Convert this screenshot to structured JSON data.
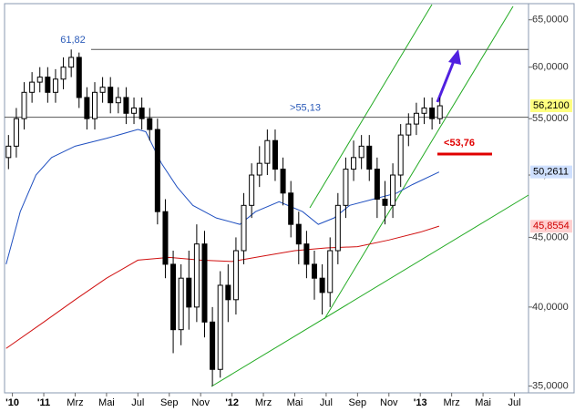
{
  "chart_data": {
    "type": "candlestick",
    "log_scale": true,
    "xlim": [
      -2.5,
      30.9
    ],
    "ylim": [
      34.6,
      66.8
    ],
    "xticks": [
      {
        "value": -2,
        "label": "'10"
      },
      {
        "value": 0,
        "label": "'11"
      },
      {
        "value": 2,
        "label": "Mrz"
      },
      {
        "value": 4,
        "label": "Mai"
      },
      {
        "value": 6,
        "label": "Jul"
      },
      {
        "value": 8,
        "label": "Sep"
      },
      {
        "value": 10,
        "label": "Nov"
      },
      {
        "value": 12,
        "label": "'12"
      },
      {
        "value": 14,
        "label": "Mrz"
      },
      {
        "value": 16,
        "label": "Mai"
      },
      {
        "value": 18,
        "label": "Jul"
      },
      {
        "value": 20,
        "label": "Sep"
      },
      {
        "value": 22,
        "label": "Nov"
      },
      {
        "value": 24,
        "label": "'13"
      },
      {
        "value": 26,
        "label": "Mrz"
      },
      {
        "value": 28,
        "label": "Mai"
      },
      {
        "value": 30,
        "label": "Jul"
      }
    ],
    "yticks": [
      {
        "value": 35,
        "label": "35,0000"
      },
      {
        "value": 40,
        "label": "40,0000"
      },
      {
        "value": 45,
        "label": "45,0000"
      },
      {
        "value": 50,
        "label": "50,0000"
      },
      {
        "value": 55,
        "label": "55,0000"
      },
      {
        "value": 60,
        "label": "60,0000"
      },
      {
        "value": 65,
        "label": "65,0000"
      }
    ],
    "candles": {
      "x": [
        -2.25,
        -1.75,
        -1.25,
        -0.75,
        -0.25,
        0.25,
        0.75,
        1.25,
        1.75,
        2.25,
        2.75,
        3.25,
        3.75,
        4.25,
        4.75,
        5.25,
        5.75,
        6.25,
        6.75,
        7.25,
        7.75,
        8.25,
        8.75,
        9.25,
        9.75,
        10.25,
        10.75,
        11.25,
        11.75,
        12.25,
        12.75,
        13.25,
        13.75,
        14.25,
        14.75,
        15.25,
        15.75,
        16.25,
        16.75,
        17.25,
        17.75,
        18.25,
        18.75,
        19.25,
        19.75,
        20.25,
        20.75,
        21.25,
        21.75,
        22.25,
        22.75,
        23.25,
        23.75,
        24.25,
        24.75,
        25.25
      ],
      "open": [
        51.5,
        52.5,
        55,
        57.5,
        58.5,
        59,
        57.5,
        58.8,
        60,
        61,
        57,
        55,
        57.5,
        58,
        56.5,
        57,
        55.5,
        56,
        55,
        54,
        47,
        43,
        38.5,
        42,
        40,
        44.5,
        39,
        36,
        41.5,
        40.5,
        44,
        47.5,
        50,
        51,
        53,
        50.5,
        48.5,
        46,
        44.5,
        43,
        42,
        41,
        44,
        47.5,
        50.5,
        51.5,
        52.5,
        50.5,
        48,
        47.5,
        50,
        53.5,
        54.5,
        55.5,
        56,
        55
      ],
      "high": [
        53.5,
        56,
        58.5,
        59.5,
        60,
        60,
        59.8,
        61,
        61.82,
        61.5,
        58,
        58.5,
        59,
        59,
        58,
        58,
        57,
        57,
        56,
        55,
        48,
        44,
        43,
        44,
        46,
        45.5,
        40,
        42.5,
        43,
        45,
        48.5,
        51,
        52.5,
        54,
        54,
        51.5,
        49.5,
        47,
        45.5,
        44,
        43,
        45,
        48.5,
        51.5,
        53,
        53.5,
        53.5,
        51.5,
        49.5,
        51,
        54.5,
        55.5,
        56.5,
        57,
        57,
        57
      ],
      "low": [
        50.5,
        51.5,
        54,
        56.5,
        57.5,
        56.5,
        56.5,
        57.8,
        59,
        56,
        54,
        54,
        56.5,
        55.5,
        55.5,
        54.5,
        54.5,
        54,
        53,
        46,
        42,
        37,
        37.5,
        38.5,
        39,
        38,
        35,
        35.5,
        39,
        39.5,
        43,
        46.5,
        49,
        50,
        49.5,
        47.5,
        45,
        43,
        42,
        40.5,
        39.5,
        40,
        43,
        46.5,
        49.5,
        50.5,
        49.5,
        46.5,
        46,
        46.5,
        49,
        52.5,
        53.5,
        54.5,
        54,
        54.5
      ],
      "close": [
        52.5,
        55,
        57.5,
        58.5,
        59,
        57.5,
        58.8,
        60,
        61,
        57,
        55,
        57.5,
        58,
        56.5,
        57,
        55.5,
        56,
        55,
        54,
        47,
        43,
        38.5,
        42,
        40,
        44.5,
        39,
        36,
        41.5,
        40.5,
        44,
        47.5,
        50,
        51,
        53,
        50.5,
        48.5,
        46,
        44.5,
        43,
        42,
        41,
        44,
        47.5,
        50.5,
        51.5,
        52.5,
        50.5,
        48,
        47.5,
        50,
        53.5,
        54.5,
        55.5,
        56,
        55,
        56.21
      ]
    },
    "lines": [
      {
        "color": "#2050c0",
        "x": [
          -2.4,
          -1.5,
          -0.5,
          0.5,
          2,
          4,
          6,
          6.5,
          7.5,
          8.5,
          9.5,
          11,
          12.5,
          13.5,
          15,
          16.5,
          17.5,
          18.5,
          19.5,
          21,
          22.5,
          23.5,
          25.2
        ],
        "values": [
          43,
          47,
          50,
          51.5,
          52.5,
          53.2,
          54,
          53.8,
          51,
          49,
          47.5,
          46.5,
          46,
          47,
          47.8,
          47,
          46,
          46.5,
          47.5,
          48,
          48.5,
          49.2,
          50.26
        ]
      },
      {
        "color": "#d01010",
        "x": [
          -2.4,
          0,
          2,
          4,
          6,
          8,
          10,
          12,
          14,
          16,
          18,
          20,
          22,
          24,
          25.2
        ],
        "values": [
          37.3,
          39,
          40.5,
          42,
          43.3,
          43.5,
          43.3,
          43.2,
          43.6,
          44,
          44.2,
          44.3,
          44.8,
          45.4,
          45.86
        ]
      }
    ],
    "levels": [
      {
        "value": 61.82,
        "label": "61,82"
      },
      {
        "value": 55.13,
        "label": ">55,13"
      }
    ],
    "annotation": {
      "value": 53.76,
      "label": "<53,76"
    },
    "last_labels": [
      {
        "value": 56.21,
        "label": "56,2100",
        "color": "#ffff80",
        "text_color": "#000000"
      },
      {
        "value": 50.2611,
        "label": "50,2611",
        "color": "#cfe0ff",
        "text_color": "#000000"
      },
      {
        "value": 45.8554,
        "label": "45,8554",
        "color": "#ffd0d0",
        "text_color": "#d00000"
      }
    ]
  }
}
